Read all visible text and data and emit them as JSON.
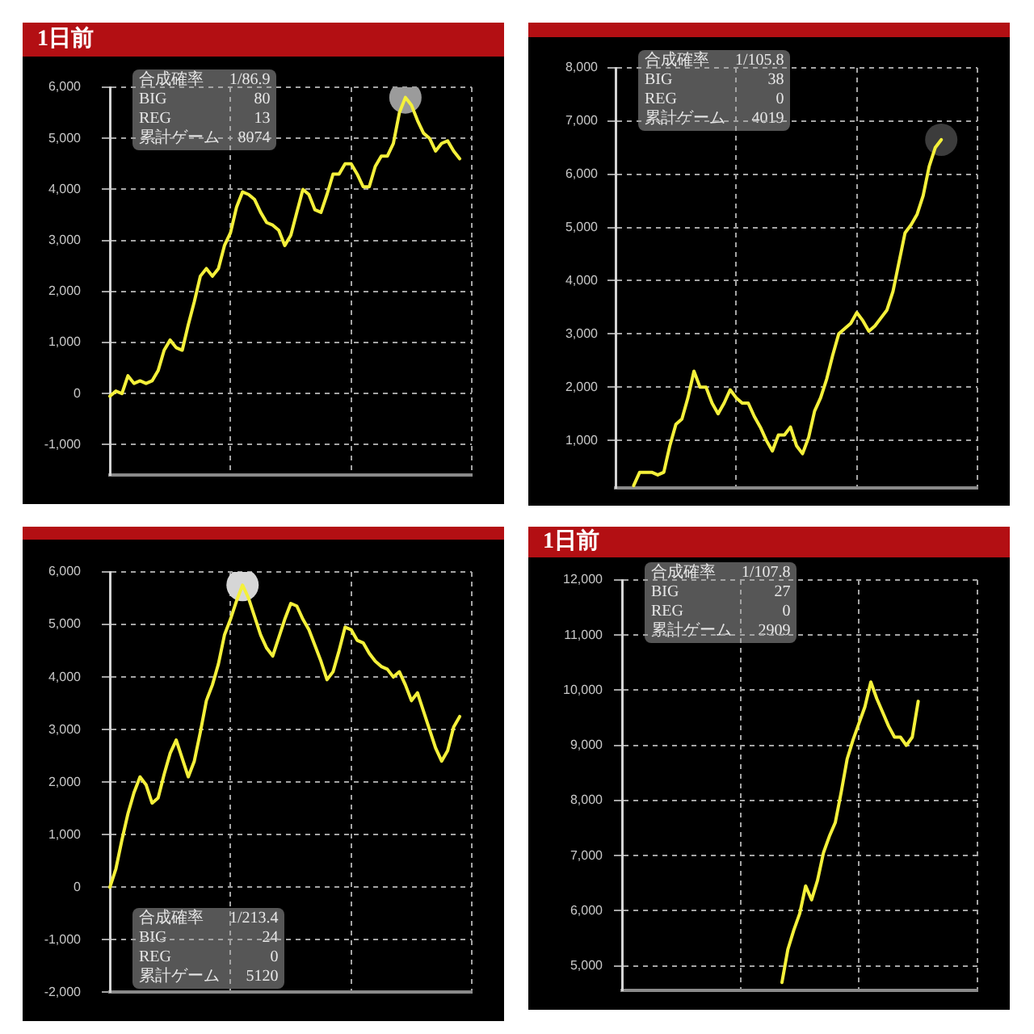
{
  "chart_data": [
    {
      "type": "line",
      "title": "1日前",
      "categories": [
        null,
        null,
        null,
        null,
        null,
        null,
        null,
        null,
        null,
        null,
        null,
        null,
        null,
        null,
        null,
        null,
        null,
        null,
        null,
        null,
        null,
        null,
        null,
        null,
        null,
        null,
        null,
        null,
        null,
        null,
        null,
        null,
        null,
        null,
        null,
        null,
        null,
        null,
        null,
        null,
        null,
        null,
        null,
        null,
        null,
        null,
        null,
        null,
        null,
        null,
        null,
        null,
        null,
        null,
        null,
        null,
        null,
        null,
        null,
        null,
        null
      ],
      "series": [
        {
          "color": "#f4f03a",
          "values": [
            -50,
            50,
            0,
            350,
            200,
            250,
            200,
            250,
            450,
            850,
            1050,
            900,
            850,
            1350,
            1800,
            2300,
            2450,
            2300,
            2450,
            2900,
            3150,
            3650,
            3950,
            3900,
            3800,
            3550,
            3350,
            3300,
            3200,
            2900,
            3100,
            3550,
            4000,
            3900,
            3600,
            3550,
            3900,
            4300,
            4300,
            4500,
            4500,
            4300,
            4050,
            4050,
            4450,
            4650,
            4650,
            4900,
            5500,
            5800,
            5650,
            5350,
            5100,
            5000,
            4750,
            4900,
            4950,
            4750,
            4600,
            null,
            null
          ]
        },
        {
          "type": "scatter",
          "color": "#9b9b9b",
          "values": [
            null,
            null,
            null,
            null,
            null,
            null,
            null,
            null,
            null,
            null,
            null,
            null,
            null,
            null,
            null,
            null,
            null,
            null,
            null,
            null,
            null,
            null,
            null,
            null,
            null,
            null,
            null,
            null,
            null,
            null,
            null,
            null,
            null,
            null,
            null,
            null,
            null,
            null,
            null,
            null,
            null,
            null,
            null,
            null,
            null,
            null,
            null,
            null,
            null,
            5800,
            null,
            null,
            null,
            null,
            null,
            null,
            null,
            null,
            null,
            null,
            null
          ]
        }
      ],
      "ylim": [
        -1600,
        6000
      ],
      "yticks": [
        {
          "value": -1000,
          "label": "-1,000"
        },
        0,
        {
          "value": 1000,
          "label": "1,000"
        },
        {
          "value": 2000,
          "label": "2,000"
        },
        {
          "value": 3000,
          "label": "3,000"
        },
        {
          "value": 4000,
          "label": "4,000"
        },
        {
          "value": 5000,
          "label": "5,000"
        },
        {
          "value": 6000,
          "label": "6,000"
        }
      ],
      "grid": true,
      "tick_labels": "y",
      "annotations": [
        "合成確率",
        "1/86.9",
        "BIG",
        "80",
        "REG",
        "13",
        "累計ゲーム",
        "8074"
      ]
    },
    {
      "type": "line",
      "categories": [
        null,
        null,
        null,
        null,
        null,
        null,
        null,
        null,
        null,
        null,
        null,
        null,
        null,
        null,
        null,
        null,
        null,
        null,
        null,
        null,
        null,
        null,
        null,
        null,
        null,
        null,
        null,
        null,
        null,
        null,
        null,
        null,
        null,
        null,
        null,
        null,
        null,
        null,
        null,
        null,
        null,
        null,
        null,
        null,
        null,
        null,
        null,
        null,
        null,
        null,
        null,
        null,
        null,
        null,
        null,
        null,
        null,
        null,
        null,
        null,
        null
      ],
      "series": [
        {
          "color": "#f4f03a",
          "values": [
            null,
            null,
            null,
            150,
            400,
            400,
            400,
            350,
            400,
            900,
            1300,
            1400,
            1800,
            2300,
            2000,
            2000,
            1700,
            1500,
            1700,
            1950,
            1800,
            1700,
            1700,
            1450,
            1250,
            1000,
            800,
            1100,
            1100,
            1250,
            900,
            750,
            1050,
            1550,
            1800,
            2150,
            2600,
            3000,
            3100,
            3200,
            3400,
            3250,
            3050,
            3150,
            3300,
            3450,
            3800,
            4350,
            4900,
            5050,
            5250,
            5600,
            6150,
            6500,
            6650,
            null,
            null,
            null,
            null,
            null,
            null
          ]
        },
        {
          "type": "scatter",
          "color": "#3c3c3c",
          "values": [
            null,
            null,
            null,
            null,
            null,
            null,
            null,
            null,
            null,
            null,
            null,
            null,
            null,
            null,
            null,
            null,
            null,
            null,
            null,
            null,
            null,
            null,
            null,
            null,
            null,
            null,
            null,
            null,
            null,
            null,
            null,
            null,
            null,
            null,
            null,
            null,
            null,
            null,
            null,
            null,
            null,
            null,
            null,
            null,
            null,
            null,
            null,
            null,
            null,
            null,
            null,
            null,
            null,
            null,
            6650,
            null,
            null,
            null,
            null,
            null,
            null
          ]
        }
      ],
      "ylim": [
        100,
        8000
      ],
      "yticks": [
        {
          "value": 1000,
          "label": "1,000"
        },
        {
          "value": 2000,
          "label": "2,000"
        },
        {
          "value": 3000,
          "label": "3,000"
        },
        {
          "value": 4000,
          "label": "4,000"
        },
        {
          "value": 5000,
          "label": "5,000"
        },
        {
          "value": 6000,
          "label": "6,000"
        },
        {
          "value": 7000,
          "label": "7,000"
        },
        {
          "value": 8000,
          "label": "8,000"
        }
      ],
      "grid": true,
      "tick_labels": "y",
      "annotations": [
        "合成確率",
        "1/105.8",
        "BIG",
        "38",
        "REG",
        "0",
        "累計ゲーム",
        "4019"
      ]
    },
    {
      "type": "line",
      "categories": [
        null,
        null,
        null,
        null,
        null,
        null,
        null,
        null,
        null,
        null,
        null,
        null,
        null,
        null,
        null,
        null,
        null,
        null,
        null,
        null,
        null,
        null,
        null,
        null,
        null,
        null,
        null,
        null,
        null,
        null,
        null,
        null,
        null,
        null,
        null,
        null,
        null,
        null,
        null,
        null,
        null,
        null,
        null,
        null,
        null,
        null,
        null,
        null,
        null,
        null,
        null,
        null,
        null,
        null,
        null,
        null,
        null,
        null,
        null,
        null,
        null
      ],
      "series": [
        {
          "color": "#f4f03a",
          "values": [
            0,
            350,
            900,
            1400,
            1800,
            2100,
            1950,
            1600,
            1700,
            2150,
            2550,
            2800,
            2450,
            2100,
            2400,
            2950,
            3550,
            3850,
            4250,
            4800,
            5100,
            5450,
            5750,
            5500,
            5150,
            4800,
            4550,
            4400,
            4750,
            5100,
            5400,
            5350,
            5100,
            4900,
            4600,
            4300,
            3950,
            4100,
            4500,
            4950,
            4900,
            4700,
            4650,
            4450,
            4300,
            4200,
            4150,
            4000,
            4100,
            3850,
            3550,
            3700,
            3350,
            3000,
            2650,
            2400,
            2600,
            3050,
            3250,
            null,
            null
          ]
        },
        {
          "type": "scatter",
          "color": "#d6d6d6",
          "values": [
            null,
            null,
            null,
            null,
            null,
            null,
            null,
            null,
            null,
            null,
            null,
            null,
            null,
            null,
            null,
            null,
            null,
            null,
            null,
            null,
            null,
            null,
            5750,
            null,
            null,
            null,
            null,
            null,
            null,
            null,
            null,
            null,
            null,
            null,
            null,
            null,
            null,
            null,
            null,
            null,
            null,
            null,
            null,
            null,
            null,
            null,
            null,
            null,
            null,
            null,
            null,
            null,
            null,
            null,
            null,
            null,
            null,
            null,
            null,
            null,
            null
          ]
        }
      ],
      "ylim": [
        -2000,
        6000
      ],
      "yticks": [
        {
          "value": -2000,
          "label": "-2,000"
        },
        {
          "value": -1000,
          "label": "-1,000"
        },
        0,
        {
          "value": 1000,
          "label": "1,000"
        },
        {
          "value": 2000,
          "label": "2,000"
        },
        {
          "value": 3000,
          "label": "3,000"
        },
        {
          "value": 4000,
          "label": "4,000"
        },
        {
          "value": 5000,
          "label": "5,000"
        },
        {
          "value": 6000,
          "label": "6,000"
        }
      ],
      "grid": true,
      "tick_labels": "y",
      "annotations": [
        "合成確率",
        "1/213.4",
        "BIG",
        "24",
        "REG",
        "0",
        "累計ゲーム",
        "5120"
      ]
    },
    {
      "type": "line",
      "title": "1日前",
      "categories": [
        null,
        null,
        null,
        null,
        null,
        null,
        null,
        null,
        null,
        null,
        null,
        null,
        null,
        null,
        null,
        null,
        null,
        null,
        null,
        null,
        null,
        null,
        null,
        null,
        null,
        null,
        null,
        null,
        null,
        null,
        null,
        null,
        null,
        null,
        null,
        null,
        null,
        null,
        null,
        null,
        null,
        null,
        null,
        null,
        null,
        null,
        null,
        null,
        null,
        null,
        null,
        null,
        null,
        null,
        null,
        null,
        null,
        null,
        null,
        null,
        null
      ],
      "series": [
        {
          "color": "#f4f03a",
          "values": [
            null,
            null,
            null,
            null,
            null,
            null,
            null,
            null,
            null,
            null,
            null,
            null,
            null,
            null,
            null,
            null,
            null,
            null,
            null,
            null,
            null,
            null,
            null,
            null,
            null,
            null,
            null,
            4700,
            5300,
            5650,
            5950,
            6450,
            6200,
            6550,
            7050,
            7350,
            7600,
            8150,
            8750,
            9100,
            9400,
            9700,
            10150,
            9850,
            9600,
            9350,
            9150,
            9150,
            9000,
            9150,
            9800,
            null,
            null,
            null,
            null,
            null,
            null,
            null,
            null,
            null,
            null
          ]
        }
      ],
      "ylim": [
        4550,
        12000
      ],
      "yticks": [
        {
          "value": 5000,
          "label": "5,000"
        },
        {
          "value": 6000,
          "label": "6,000"
        },
        {
          "value": 7000,
          "label": "7,000"
        },
        {
          "value": 8000,
          "label": "8,000"
        },
        {
          "value": 9000,
          "label": "9,000"
        },
        {
          "value": 10000,
          "label": "10,000"
        },
        {
          "value": 11000,
          "label": "11,000"
        },
        {
          "value": 12000,
          "label": "12,000"
        }
      ],
      "grid": true,
      "tick_labels": "y",
      "annotations": [
        "合成確率",
        "1/107.8",
        "BIG",
        "27",
        "REG",
        "0",
        "累計ゲーム",
        "2909"
      ]
    }
  ]
}
